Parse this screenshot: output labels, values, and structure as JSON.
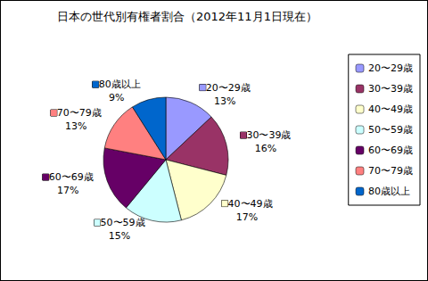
{
  "chart_data": {
    "type": "pie",
    "title": "日本の世代別有権者割合（2012年11月1日現在）",
    "categories": [
      "20〜29歳",
      "30〜39歳",
      "40〜49歳",
      "50〜59歳",
      "60〜69歳",
      "70〜79歳",
      "80歳以上"
    ],
    "values": [
      13,
      16,
      17,
      15,
      17,
      13,
      9
    ],
    "value_labels": [
      "13%",
      "16%",
      "17%",
      "15%",
      "17%",
      "13%",
      "9%"
    ],
    "colors": [
      "#9999ff",
      "#993366",
      "#ffffcc",
      "#ccffff",
      "#660066",
      "#ff8080",
      "#0066cc"
    ],
    "legend": "right",
    "data_labels": true
  }
}
